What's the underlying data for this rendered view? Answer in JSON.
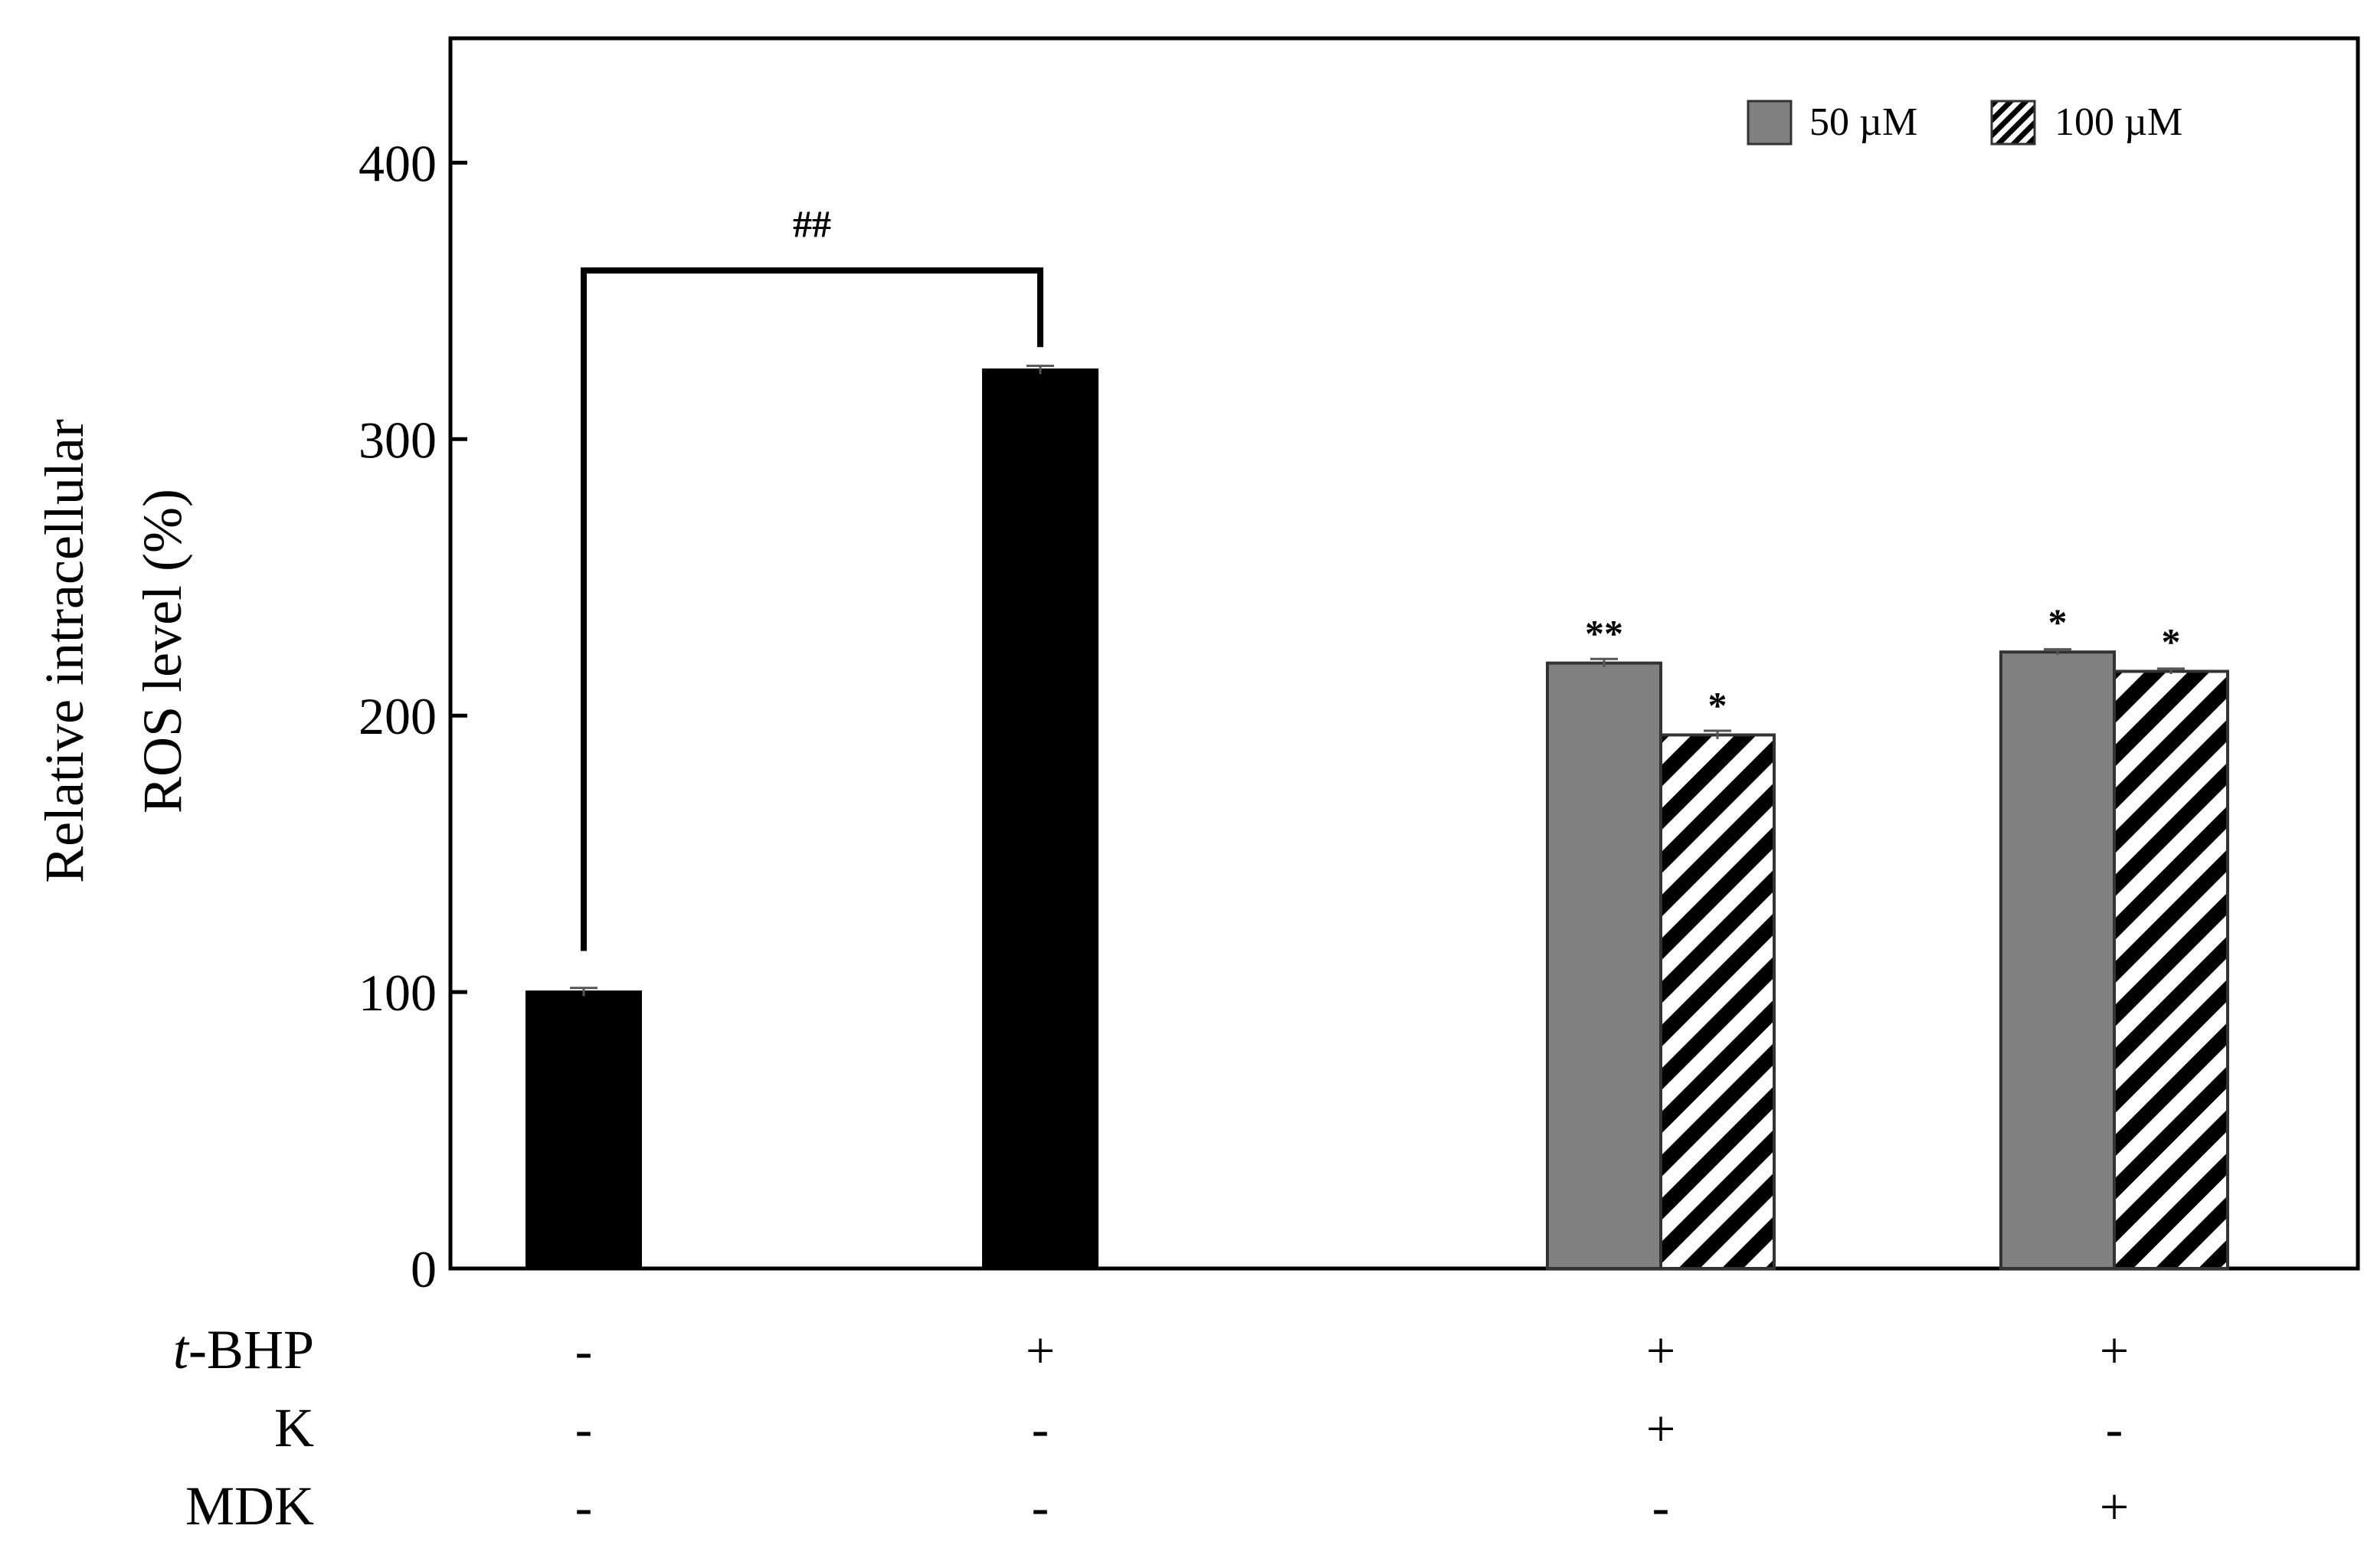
{
  "chart_data": {
    "type": "bar",
    "ylabel_line1": "Relative intracellular",
    "ylabel_line2": "ROS level (%)",
    "ylim": [
      0,
      445
    ],
    "yticks": [
      0,
      100,
      200,
      300,
      400
    ],
    "grid": false,
    "legend_position": "top-right",
    "series": [
      {
        "name": "50 µM",
        "fill": "#808080",
        "pattern": "solid"
      },
      {
        "name": "100 µM",
        "fill": "#ffffff",
        "pattern": "diagonal-stripes"
      }
    ],
    "groups": [
      {
        "bars": [
          {
            "series": null,
            "value": 100,
            "error": 1.5,
            "star": ""
          }
        ]
      },
      {
        "bars": [
          {
            "series": null,
            "value": 325,
            "error": 1.5,
            "star": ""
          }
        ]
      },
      {
        "bars": [
          {
            "series": 0,
            "value": 219,
            "error": 1.5,
            "star": "**"
          },
          {
            "series": 1,
            "value": 193,
            "error": 1.5,
            "star": "*"
          }
        ]
      },
      {
        "bars": [
          {
            "series": 0,
            "value": 223,
            "error": 1.0,
            "star": "*"
          },
          {
            "series": 1,
            "value": 216,
            "error": 1.0,
            "star": "*"
          }
        ]
      }
    ],
    "bracket": {
      "from_group": 0,
      "to_group": 1,
      "label": "##"
    },
    "treatments": [
      {
        "label_italic": "t",
        "label": "-BHP",
        "signs": [
          "-",
          "+",
          "+",
          "+"
        ]
      },
      {
        "label_italic": "",
        "label": "K",
        "signs": [
          "-",
          "-",
          "+",
          "-"
        ]
      },
      {
        "label_italic": "",
        "label": "MDK",
        "signs": [
          "-",
          "-",
          "-",
          "+"
        ]
      }
    ],
    "colors": {
      "control_bar": "#000000",
      "bar_50": "#808080",
      "bar_100_stripe": "#000000"
    }
  }
}
